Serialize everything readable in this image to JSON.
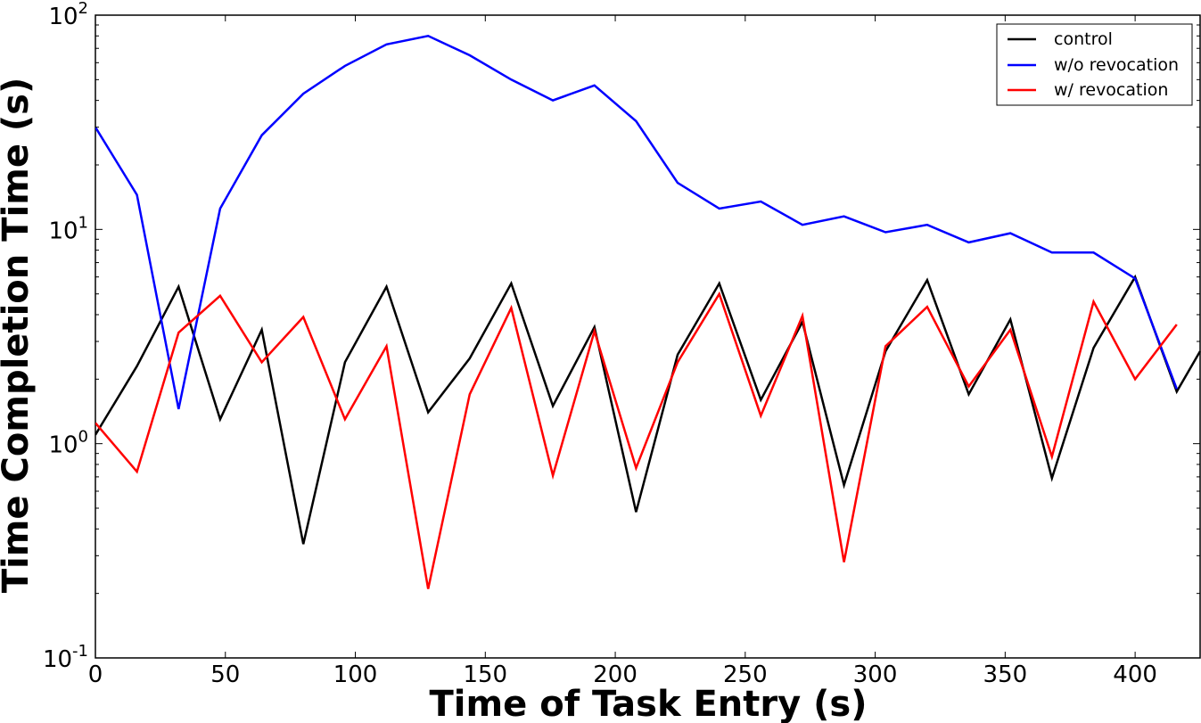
{
  "chart_data": {
    "type": "line",
    "xlabel": "Time of Task Entry (s)",
    "ylabel": "Time Completion Time (s)",
    "xlim": [
      0,
      425
    ],
    "ylim": [
      0.1,
      100
    ],
    "yscale": "log",
    "grid": false,
    "legend_position": "top-right",
    "x_ticks": [
      0,
      50,
      100,
      150,
      200,
      250,
      300,
      350,
      400
    ],
    "y_ticks": [
      {
        "value": 0.1,
        "base": "10",
        "exp": "-1"
      },
      {
        "value": 1,
        "base": "10",
        "exp": "0"
      },
      {
        "value": 10,
        "base": "10",
        "exp": "1"
      },
      {
        "value": 100,
        "base": "10",
        "exp": "2"
      }
    ],
    "x": [
      0,
      16,
      32,
      48,
      64,
      80,
      96,
      112,
      128,
      144,
      160,
      176,
      192,
      208,
      224,
      240,
      256,
      272,
      288,
      304,
      320,
      336,
      352,
      368,
      384,
      400,
      416
    ],
    "series": [
      {
        "name": "control",
        "color": "#000000",
        "x": [
          0,
          16,
          32,
          48,
          64,
          80,
          96,
          112,
          128,
          144,
          160,
          176,
          192,
          208,
          224,
          240,
          256,
          272,
          288,
          304,
          320,
          336,
          352,
          368,
          384,
          400,
          416,
          425
        ],
        "values": [
          1.1,
          2.3,
          5.4,
          1.3,
          3.4,
          0.34,
          2.4,
          5.4,
          1.4,
          2.5,
          5.6,
          1.5,
          3.5,
          0.48,
          2.6,
          5.6,
          1.6,
          3.7,
          0.64,
          2.7,
          5.8,
          1.7,
          3.8,
          0.69,
          2.8,
          6.0,
          1.75,
          2.7
        ]
      },
      {
        "name": "w/o revocation",
        "color": "#0000ff",
        "x": [
          0,
          16,
          32,
          48,
          64,
          80,
          96,
          112,
          128,
          144,
          160,
          176,
          192,
          208,
          224,
          240,
          256,
          272,
          288,
          304,
          320,
          336,
          352,
          368,
          384,
          400,
          416
        ],
        "values": [
          30,
          14.5,
          1.45,
          12.5,
          27.5,
          43,
          58,
          73,
          80,
          65,
          50,
          40,
          47,
          32,
          16.5,
          12.5,
          13.5,
          10.5,
          11.5,
          9.7,
          10.5,
          8.7,
          9.6,
          7.8,
          7.8,
          5.9,
          1.8
        ]
      },
      {
        "name": "w/ revocation",
        "color": "#ff0000",
        "x": [
          0,
          16,
          32,
          48,
          64,
          80,
          96,
          112,
          128,
          144,
          160,
          176,
          192,
          208,
          224,
          240,
          256,
          272,
          288,
          304,
          320,
          336,
          352,
          368,
          384,
          400,
          416
        ],
        "values": [
          1.25,
          0.74,
          3.3,
          4.9,
          2.4,
          3.9,
          1.3,
          2.85,
          0.21,
          1.7,
          4.3,
          0.71,
          3.35,
          0.77,
          2.4,
          5.0,
          1.35,
          3.95,
          0.28,
          2.85,
          4.35,
          1.85,
          3.4,
          0.87,
          4.6,
          2.0,
          3.6
        ]
      }
    ]
  }
}
